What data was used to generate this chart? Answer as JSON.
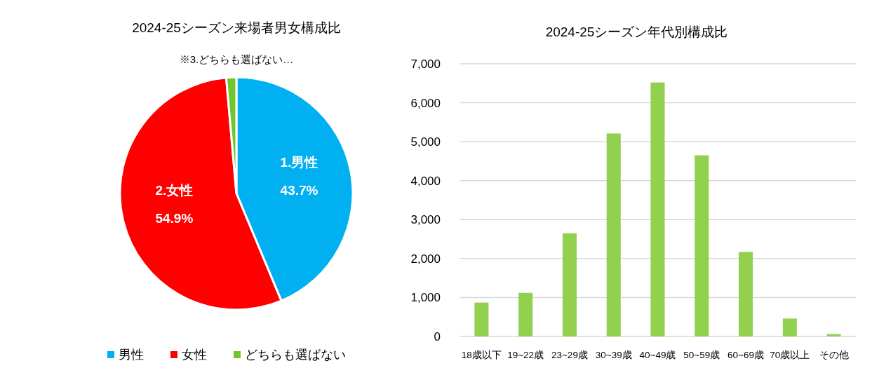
{
  "chart_data": [
    {
      "type": "pie",
      "title": "2024-25シーズン来場者男女構成比",
      "categories": [
        "男性",
        "女性",
        "どちらも選ばない"
      ],
      "values": [
        43.7,
        54.9,
        1.4
      ],
      "colors": [
        "#00b0f0",
        "#ff0000",
        "#70c72b"
      ],
      "value_labels": [
        "1.男性\n43.7%",
        "2.女性\n54.9%",
        "※3.どちらも選ばない…"
      ],
      "legend": "bottom"
    },
    {
      "type": "bar",
      "title": "2024-25シーズン年代別構成比",
      "categories": [
        "18歳以下",
        "19~22歳",
        "23~29歳",
        "30~39歳",
        "40~49歳",
        "50~59歳",
        "60~69歳",
        "70歳以上",
        "その他"
      ],
      "values": [
        870,
        1120,
        2650,
        5210,
        6520,
        4650,
        2170,
        460,
        60
      ],
      "color": "#92d050",
      "ylim": [
        0,
        7000
      ],
      "yticks": [
        {
          "value": 0,
          "label": "0"
        },
        {
          "value": 1000,
          "label": "1,000"
        },
        {
          "value": 2000,
          "label": "2,000"
        },
        {
          "value": 3000,
          "label": "3,000"
        },
        {
          "value": 4000,
          "label": "4,000"
        },
        {
          "value": 5000,
          "label": "5,000"
        },
        {
          "value": 6000,
          "label": "6,000"
        },
        {
          "value": 7000,
          "label": "7,000"
        }
      ],
      "grid": "y"
    }
  ]
}
